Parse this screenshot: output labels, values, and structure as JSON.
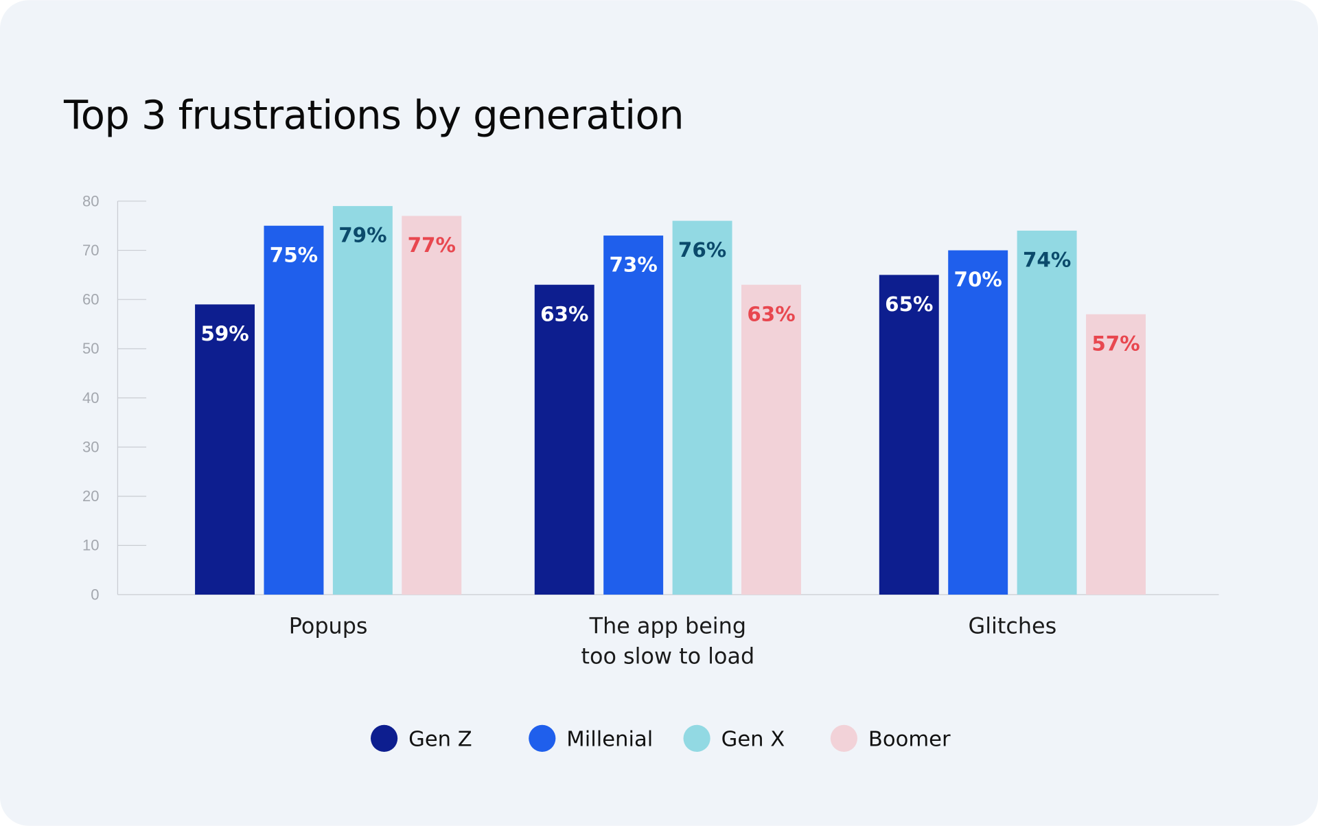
{
  "chart_data": {
    "type": "bar",
    "title": "Top 3 frustrations by generation",
    "categories": [
      [
        "Popups"
      ],
      [
        "The app being",
        "too slow to load"
      ],
      [
        "Glitches"
      ]
    ],
    "series": [
      {
        "name": "Gen Z",
        "values": [
          59,
          63,
          65
        ],
        "labels": [
          "59%",
          "63%",
          "65%"
        ],
        "color": "#0d1e8f",
        "label_color": "#ffffff"
      },
      {
        "name": "Millenial",
        "values": [
          75,
          73,
          70
        ],
        "labels": [
          "75%",
          "73%",
          "70%"
        ],
        "color": "#1f5fec",
        "label_color": "#ffffff"
      },
      {
        "name": "Gen X",
        "values": [
          79,
          76,
          74
        ],
        "labels": [
          "79%",
          "76%",
          "74%"
        ],
        "color": "#92d9e3",
        "label_color": "#0b4a6b"
      },
      {
        "name": "Boomer",
        "values": [
          77,
          63,
          57
        ],
        "labels": [
          "77%",
          "63%",
          "57%"
        ],
        "color": "#f2d2d8",
        "label_color": "#e8474f"
      }
    ],
    "yticks": [
      "0",
      "10",
      "20",
      "30",
      "40",
      "50",
      "60",
      "70",
      "80"
    ],
    "ylim": [
      0,
      80
    ],
    "xlabel": "",
    "ylabel": "",
    "grid": false,
    "legend": "bottom-center",
    "background": "#f0f4f9"
  }
}
